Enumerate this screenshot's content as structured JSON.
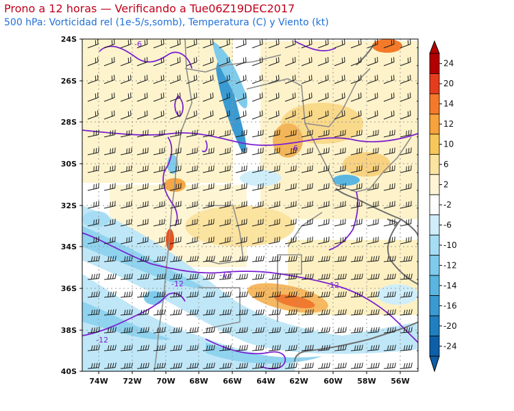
{
  "title": "Prono a 12 horas — Verificando a Tue06Z19DEC2017",
  "subtitle": "500 hPa: Vorticidad rel (1e-5/s,somb), Temperatura (C) y Viento (kt)",
  "lat_labels": [
    "24S",
    "26S",
    "28S",
    "30S",
    "32S",
    "34S",
    "36S",
    "38S",
    "40S"
  ],
  "lon_labels": [
    "74W",
    "72W",
    "70W",
    "68W",
    "66W",
    "64W",
    "62W",
    "60W",
    "58W",
    "56W"
  ],
  "contour_labels": [
    "-6",
    "-6",
    "-12",
    "-12",
    "-12",
    "-12"
  ],
  "colorbar": {
    "levels": [
      "24",
      "20",
      "14",
      "12",
      "10",
      "6",
      "2",
      "-2",
      "-6",
      "-10",
      "-12",
      "-14",
      "-16",
      "-20",
      "-24"
    ],
    "colors": [
      "#b30000",
      "#e63c1e",
      "#f47a2a",
      "#f7a23c",
      "#f8c75a",
      "#fbe3a0",
      "#fdf5d6",
      "#ffffff",
      "#cfeefa",
      "#a6ddf4",
      "#7fcbeb",
      "#5ab6e0",
      "#3a9ad2",
      "#1f7fc0",
      "#0c5fa8"
    ]
  }
}
